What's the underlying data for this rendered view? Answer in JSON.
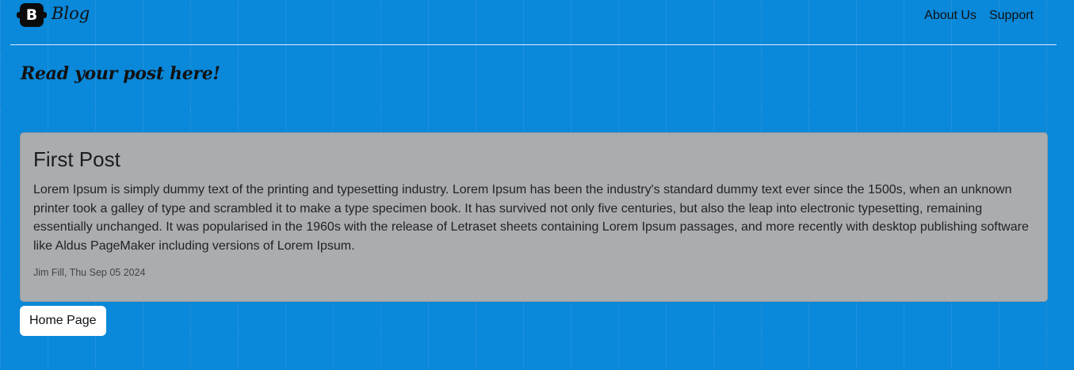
{
  "navbar": {
    "brand_logo_letter": "B",
    "brand_name": "Blog",
    "links": [
      "About Us",
      "Support"
    ]
  },
  "page": {
    "subtitle": "Read your post here!"
  },
  "post": {
    "title": "First Post",
    "body": "Lorem Ipsum is simply dummy text of the printing and typesetting industry. Lorem Ipsum has been the industry's standard dummy text ever since the 1500s, when an unknown printer took a galley of type and scrambled it to make a type specimen book. It has survived not only five centuries, but also the leap into electronic typesetting, remaining essentially unchanged. It was popularised in the 1960s with the release of Letraset sheets containing Lorem Ipsum passages, and more recently with desktop publishing software like Aldus PageMaker including versions of Lorem Ipsum.",
    "meta": "Jim Fill, Thu Sep 05 2024"
  },
  "actions": {
    "home_label": "Home Page"
  },
  "colors": {
    "background": "#0a88d9",
    "card": "#adadad",
    "button": "#ffffff"
  }
}
